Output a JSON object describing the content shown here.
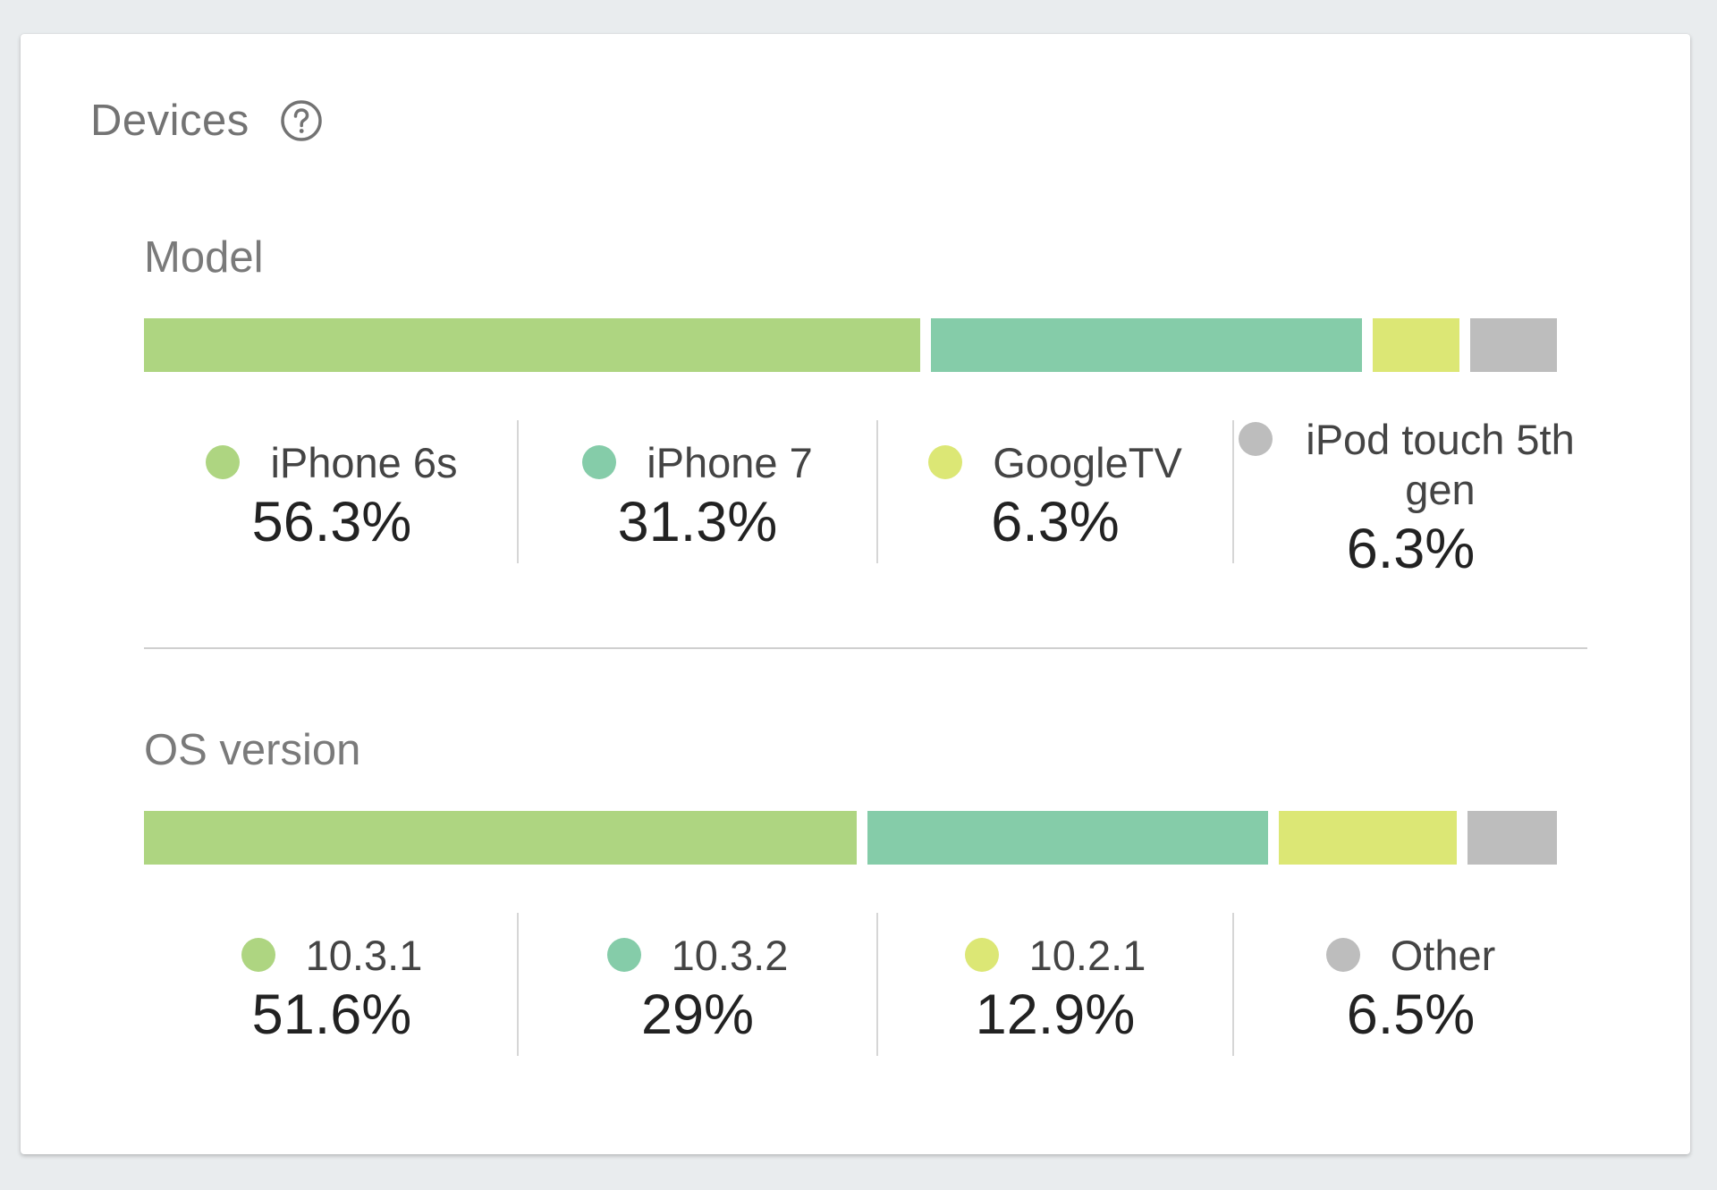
{
  "card": {
    "title": "Devices",
    "help_icon": "help-circle-icon"
  },
  "colors": {
    "green": "#aed581",
    "teal": "#85cca9",
    "yellow": "#dce775",
    "gray": "#bdbdbd"
  },
  "model": {
    "title": "Model",
    "segments": [
      {
        "label": "iPhone 6s",
        "value": "56.3%",
        "fraction": 0.563,
        "color": "#aed581"
      },
      {
        "label": "iPhone 7",
        "value": "31.3%",
        "fraction": 0.313,
        "color": "#85cca9"
      },
      {
        "label": "GoogleTV",
        "value": "6.3%",
        "fraction": 0.063,
        "color": "#dce775"
      },
      {
        "label": "iPod touch 5th gen",
        "value": "6.3%",
        "fraction": 0.063,
        "color": "#bdbdbd"
      }
    ]
  },
  "os": {
    "title": "OS version",
    "segments": [
      {
        "label": "10.3.1",
        "value": "51.6%",
        "fraction": 0.516,
        "color": "#aed581"
      },
      {
        "label": "10.3.2",
        "value": "29%",
        "fraction": 0.29,
        "color": "#85cca9"
      },
      {
        "label": "10.2.1",
        "value": "12.9%",
        "fraction": 0.129,
        "color": "#dce775"
      },
      {
        "label": "Other",
        "value": "6.5%",
        "fraction": 0.065,
        "color": "#bdbdbd"
      }
    ]
  }
}
